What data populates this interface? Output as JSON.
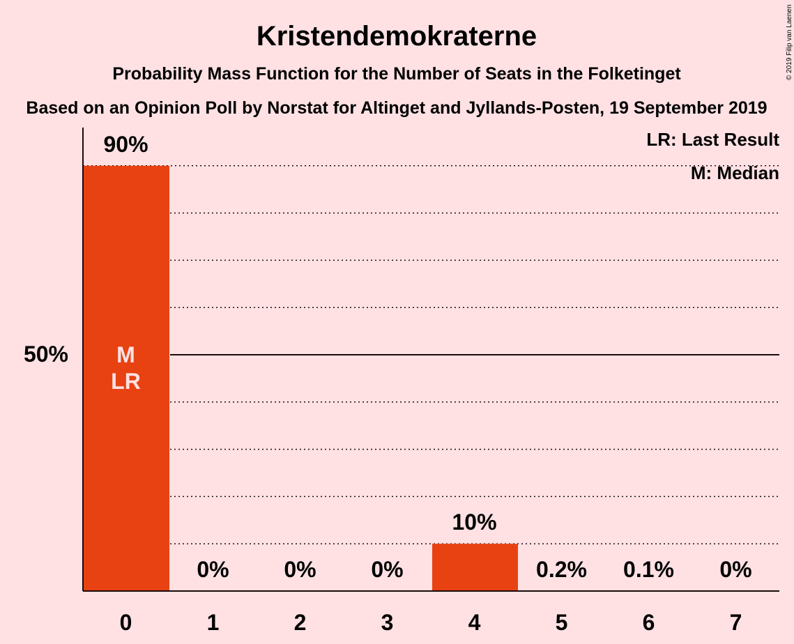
{
  "chart_data": {
    "type": "bar",
    "title": "Kristendemokraterne",
    "subtitle": "Probability Mass Function for the Number of Seats in the Folketinget",
    "subtitle2": "Based on an Opinion Poll by Norstat for Altinget and Jyllands-Posten, 19 September 2019",
    "categories": [
      "0",
      "1",
      "2",
      "3",
      "4",
      "5",
      "6",
      "7"
    ],
    "values": [
      90,
      0,
      0,
      0,
      10,
      0.2,
      0.1,
      0
    ],
    "value_labels": [
      "90%",
      "0%",
      "0%",
      "0%",
      "10%",
      "0.2%",
      "0.1%",
      "0%"
    ],
    "ylim": [
      0,
      100
    ],
    "y_tick_label": "50%",
    "median_label": "M",
    "last_result_label": "LR",
    "legend": [
      "LR: Last Result",
      "M: Median"
    ],
    "legend_position": "top-right",
    "grid": true,
    "bar_color": "#E84212",
    "background_color": "#FFE1E4",
    "copyright": "© 2019 Filip van Laenen"
  }
}
